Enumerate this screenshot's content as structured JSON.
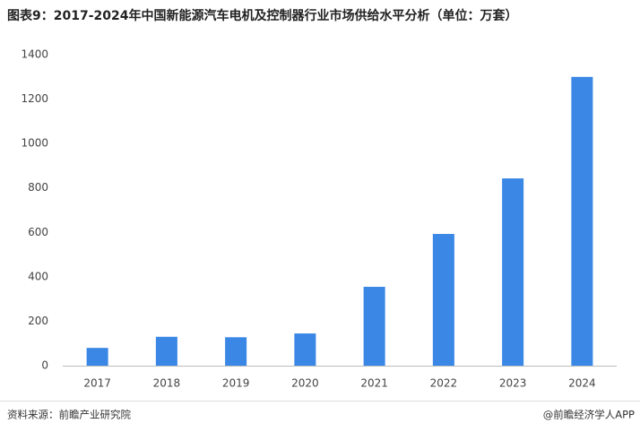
{
  "chart_data": {
    "type": "bar",
    "title": "图表9：2017-2024年中国新能源汽车电机及控制器行业市场供给水平分析（单位：万套）",
    "categories": [
      "2017",
      "2018",
      "2019",
      "2020",
      "2021",
      "2022",
      "2023",
      "2024"
    ],
    "values": [
      80,
      130,
      128,
      145,
      355,
      593,
      843,
      1300
    ],
    "color": "#3a87e6",
    "ylim": [
      0,
      1400
    ],
    "yticks": [
      0,
      200,
      400,
      600,
      800,
      1000,
      1200,
      1400
    ],
    "grid": false,
    "source": "资料来源：前瞻产业研究院",
    "credit": "@前瞻经济学人APP"
  }
}
